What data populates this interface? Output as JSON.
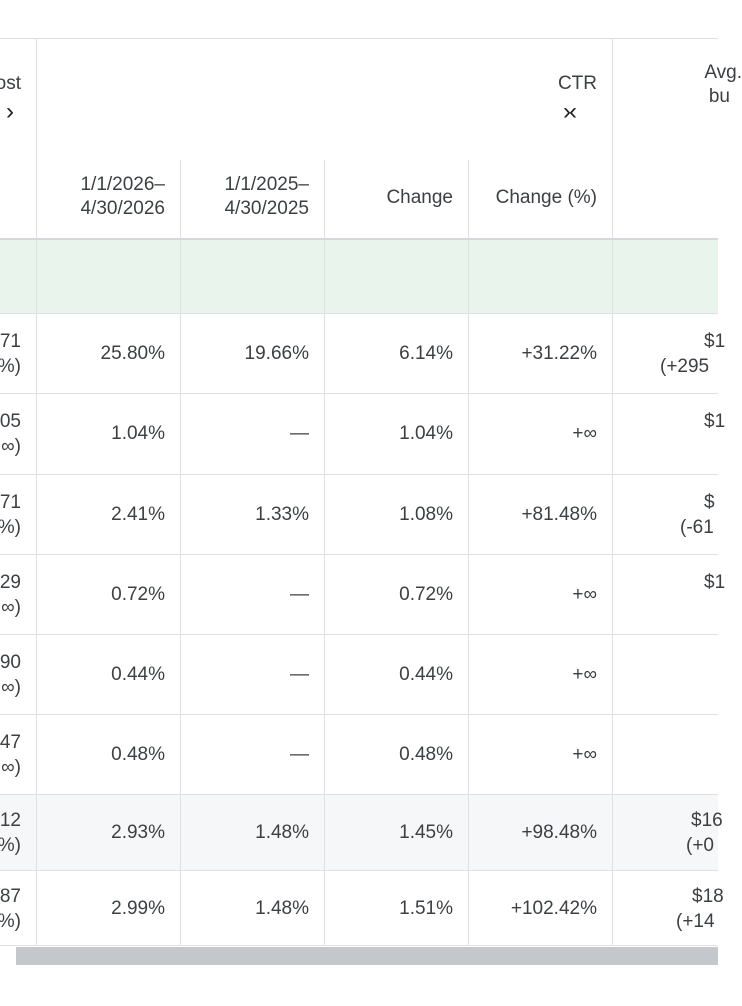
{
  "header": {
    "cost_partial": "ost",
    "ctr_label": "CTR",
    "avg_line1": "Avg.",
    "avg_line2": "bu",
    "chev_right": "›",
    "chev_expand": "›‹",
    "sub": {
      "curr_line1": "1/1/2026–",
      "curr_line2": "4/30/2026",
      "prev_line1": "1/1/2025–",
      "prev_line2": "4/30/2025",
      "change": "Change",
      "change_pct": "Change (%)"
    }
  },
  "rows": [
    {
      "left1": "71",
      "left2": "%)",
      "curr": "25.80%",
      "prev": "19.66%",
      "change": "6.14%",
      "pct": "+31.22%",
      "avg1": "$1",
      "avg2": "(+295"
    },
    {
      "left1": "05",
      "left2": "∞)",
      "curr": "1.04%",
      "prev": "—",
      "change": "1.04%",
      "pct": "+∞",
      "avg1": "$1",
      "avg2": ""
    },
    {
      "left1": "71",
      "left2": "%)",
      "curr": "2.41%",
      "prev": "1.33%",
      "change": "1.08%",
      "pct": "+81.48%",
      "avg1": "$",
      "avg2": "(-61"
    },
    {
      "left1": "29",
      "left2": "∞)",
      "curr": "0.72%",
      "prev": "—",
      "change": "0.72%",
      "pct": "+∞",
      "avg1": "$1",
      "avg2": ""
    },
    {
      "left1": "90",
      "left2": "∞)",
      "curr": "0.44%",
      "prev": "—",
      "change": "0.44%",
      "pct": "+∞",
      "avg1": "",
      "avg2": ""
    },
    {
      "left1": "47",
      "left2": "∞)",
      "curr": "0.48%",
      "prev": "—",
      "change": "0.48%",
      "pct": "+∞",
      "avg1": "",
      "avg2": ""
    },
    {
      "left1": "12",
      "left2": "%)",
      "curr": "2.93%",
      "prev": "1.48%",
      "change": "1.45%",
      "pct": "+98.48%",
      "avg1": "$16",
      "avg2": "(+0"
    },
    {
      "left1": "87",
      "left2": "%)",
      "curr": "2.99%",
      "prev": "1.48%",
      "change": "1.51%",
      "pct": "+102.42%",
      "avg1": "$18",
      "avg2": "(+14"
    }
  ]
}
